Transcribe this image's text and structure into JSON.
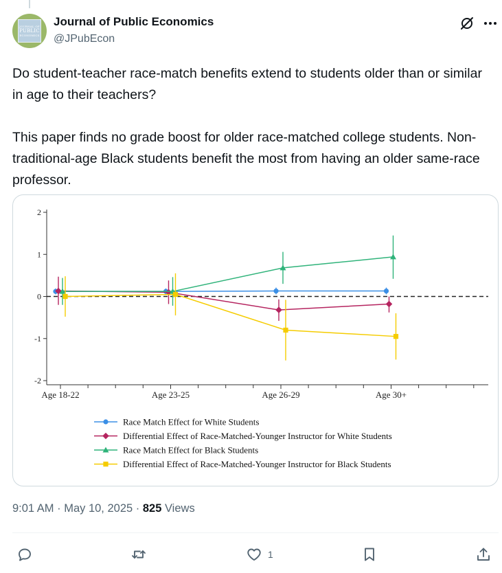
{
  "account": {
    "display_name": "Journal of Public Economics",
    "handle": "@JPubEcon",
    "avatar_text": [
      "JOURNAL OF",
      "PUBLIC",
      "ECONOMICS"
    ]
  },
  "tweet": {
    "paragraph_1": "Do student-teacher race-match benefits extend to students older than or similar in age to their teachers?",
    "paragraph_2": "This paper finds no grade boost for older race-matched college students. Non-traditional-age Black students benefit the most from having an older same-race professor.",
    "time": "9:01 AM · May 10, 2025 · ",
    "views_count": "825",
    "views_label": " Views"
  },
  "actions": {
    "reply_count": "",
    "retweet_count": "",
    "like_count": "1",
    "bookmark_count": "",
    "share_count": ""
  },
  "icons": [
    "grok-icon",
    "more-icon",
    "reply-icon",
    "retweet-icon",
    "like-icon",
    "bookmark-icon",
    "share-icon"
  ],
  "colors": {
    "text_primary": "#0f1419",
    "text_secondary": "#536471",
    "series_white_race_match": "#3b8fe6",
    "series_white_differential": "#b5245f",
    "series_black_race_match": "#2fb37a",
    "series_black_differential": "#f5cc00"
  },
  "chart_data": {
    "type": "line",
    "categories": [
      "Age 18-22",
      "Age 23-25",
      "Age 26-29",
      "Age 30+"
    ],
    "ylim": [
      -2,
      2
    ],
    "yticks": [
      "2",
      "1",
      "0",
      "-1",
      "-2"
    ],
    "reference_line": 0,
    "grid": false,
    "legend_position": "bottom",
    "series": [
      {
        "name": "Race Match Effect for White Students",
        "marker": "circle",
        "color": "#3b8fe6",
        "values": [
          0.12,
          0.12,
          0.13,
          0.13
        ],
        "ci": [
          [
            0.05,
            0.19
          ],
          [
            0.05,
            0.19
          ],
          [
            0.05,
            0.21
          ],
          [
            0.05,
            0.21
          ]
        ]
      },
      {
        "name": "Differential Effect of Race-Matched-Younger Instructor for White Students",
        "marker": "diamond",
        "color": "#b5245f",
        "values": [
          0.13,
          0.1,
          -0.32,
          -0.18
        ],
        "ci": [
          [
            -0.2,
            0.47
          ],
          [
            -0.18,
            0.38
          ],
          [
            -0.58,
            -0.07
          ],
          [
            -0.38,
            0.0
          ]
        ]
      },
      {
        "name": "Race Match Effect for Black Students",
        "marker": "triangle",
        "color": "#2fb37a",
        "values": [
          0.12,
          0.12,
          0.68,
          0.94
        ],
        "ci": [
          [
            -0.2,
            0.44
          ],
          [
            -0.22,
            0.46
          ],
          [
            0.3,
            1.06
          ],
          [
            0.42,
            1.45
          ]
        ]
      },
      {
        "name": "Differential Effect of Race-Matched-Younger Instructor for Black Students",
        "marker": "square",
        "color": "#f5cc00",
        "values": [
          0.0,
          0.05,
          -0.8,
          -0.95
        ],
        "ci": [
          [
            -0.48,
            0.48
          ],
          [
            -0.45,
            0.55
          ],
          [
            -1.52,
            -0.08
          ],
          [
            -1.5,
            -0.4
          ]
        ]
      }
    ]
  }
}
